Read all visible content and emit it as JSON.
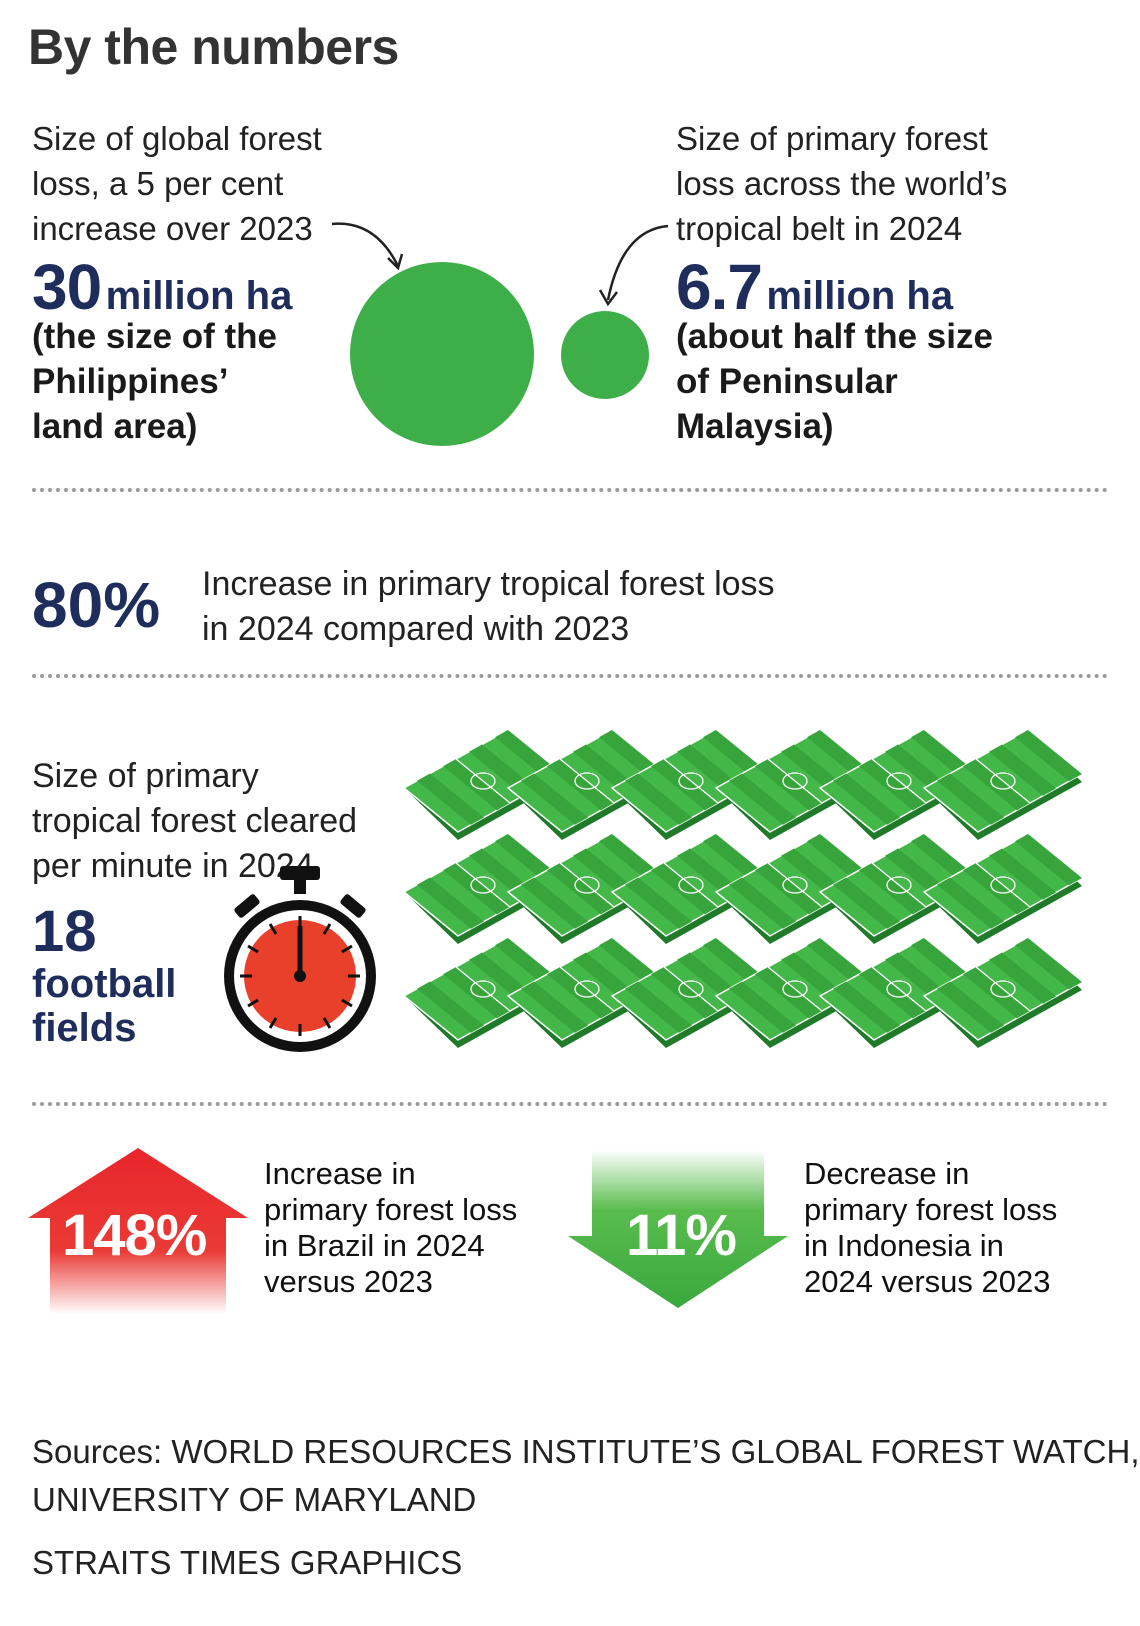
{
  "title": "By the numbers",
  "global_loss": {
    "lead_lines": [
      "Size of global forest",
      "loss, a 5 per cent",
      "increase over 2023"
    ],
    "value": "30",
    "unit": "million ha",
    "sub_lines": [
      "(the size of the",
      "Philippines’",
      "land area)"
    ]
  },
  "primary_loss": {
    "lead_lines": [
      "Size of primary forest",
      "loss across the world’s",
      "tropical belt in 2024"
    ],
    "value": "6.7",
    "unit": "million ha",
    "sub_lines": [
      "(about half the size",
      "of Peninsular",
      "Malaysia)"
    ]
  },
  "tropical_increase": {
    "value": "80%",
    "lines": [
      "Increase in primary tropical forest loss",
      "in 2024 compared with 2023"
    ]
  },
  "per_minute": {
    "lead_lines": [
      "Size of primary",
      "tropical forest cleared",
      "per minute in 2024"
    ],
    "value": "18",
    "unit_lines": [
      "football",
      "fields"
    ],
    "field_count": 18
  },
  "brazil": {
    "value": "148%",
    "lines": [
      "Increase in",
      "primary forest loss",
      "in Brazil in 2024",
      "versus 2023"
    ]
  },
  "indonesia": {
    "value": "11%",
    "lines": [
      "Decrease in",
      "primary forest loss",
      "in Indonesia in",
      "2024 versus 2023"
    ]
  },
  "sources_lines": [
    "Sources: WORLD RESOURCES INSTITUTE’S GLOBAL FOREST WATCH,",
    "UNIVERSITY OF MARYLAND"
  ],
  "credit": "STRAITS TIMES GRAPHICS",
  "colors": {
    "navy": "#1f2d5c",
    "green": "#3dae48",
    "red": "#e8262b",
    "stopwatch_face": "#e8402a"
  }
}
